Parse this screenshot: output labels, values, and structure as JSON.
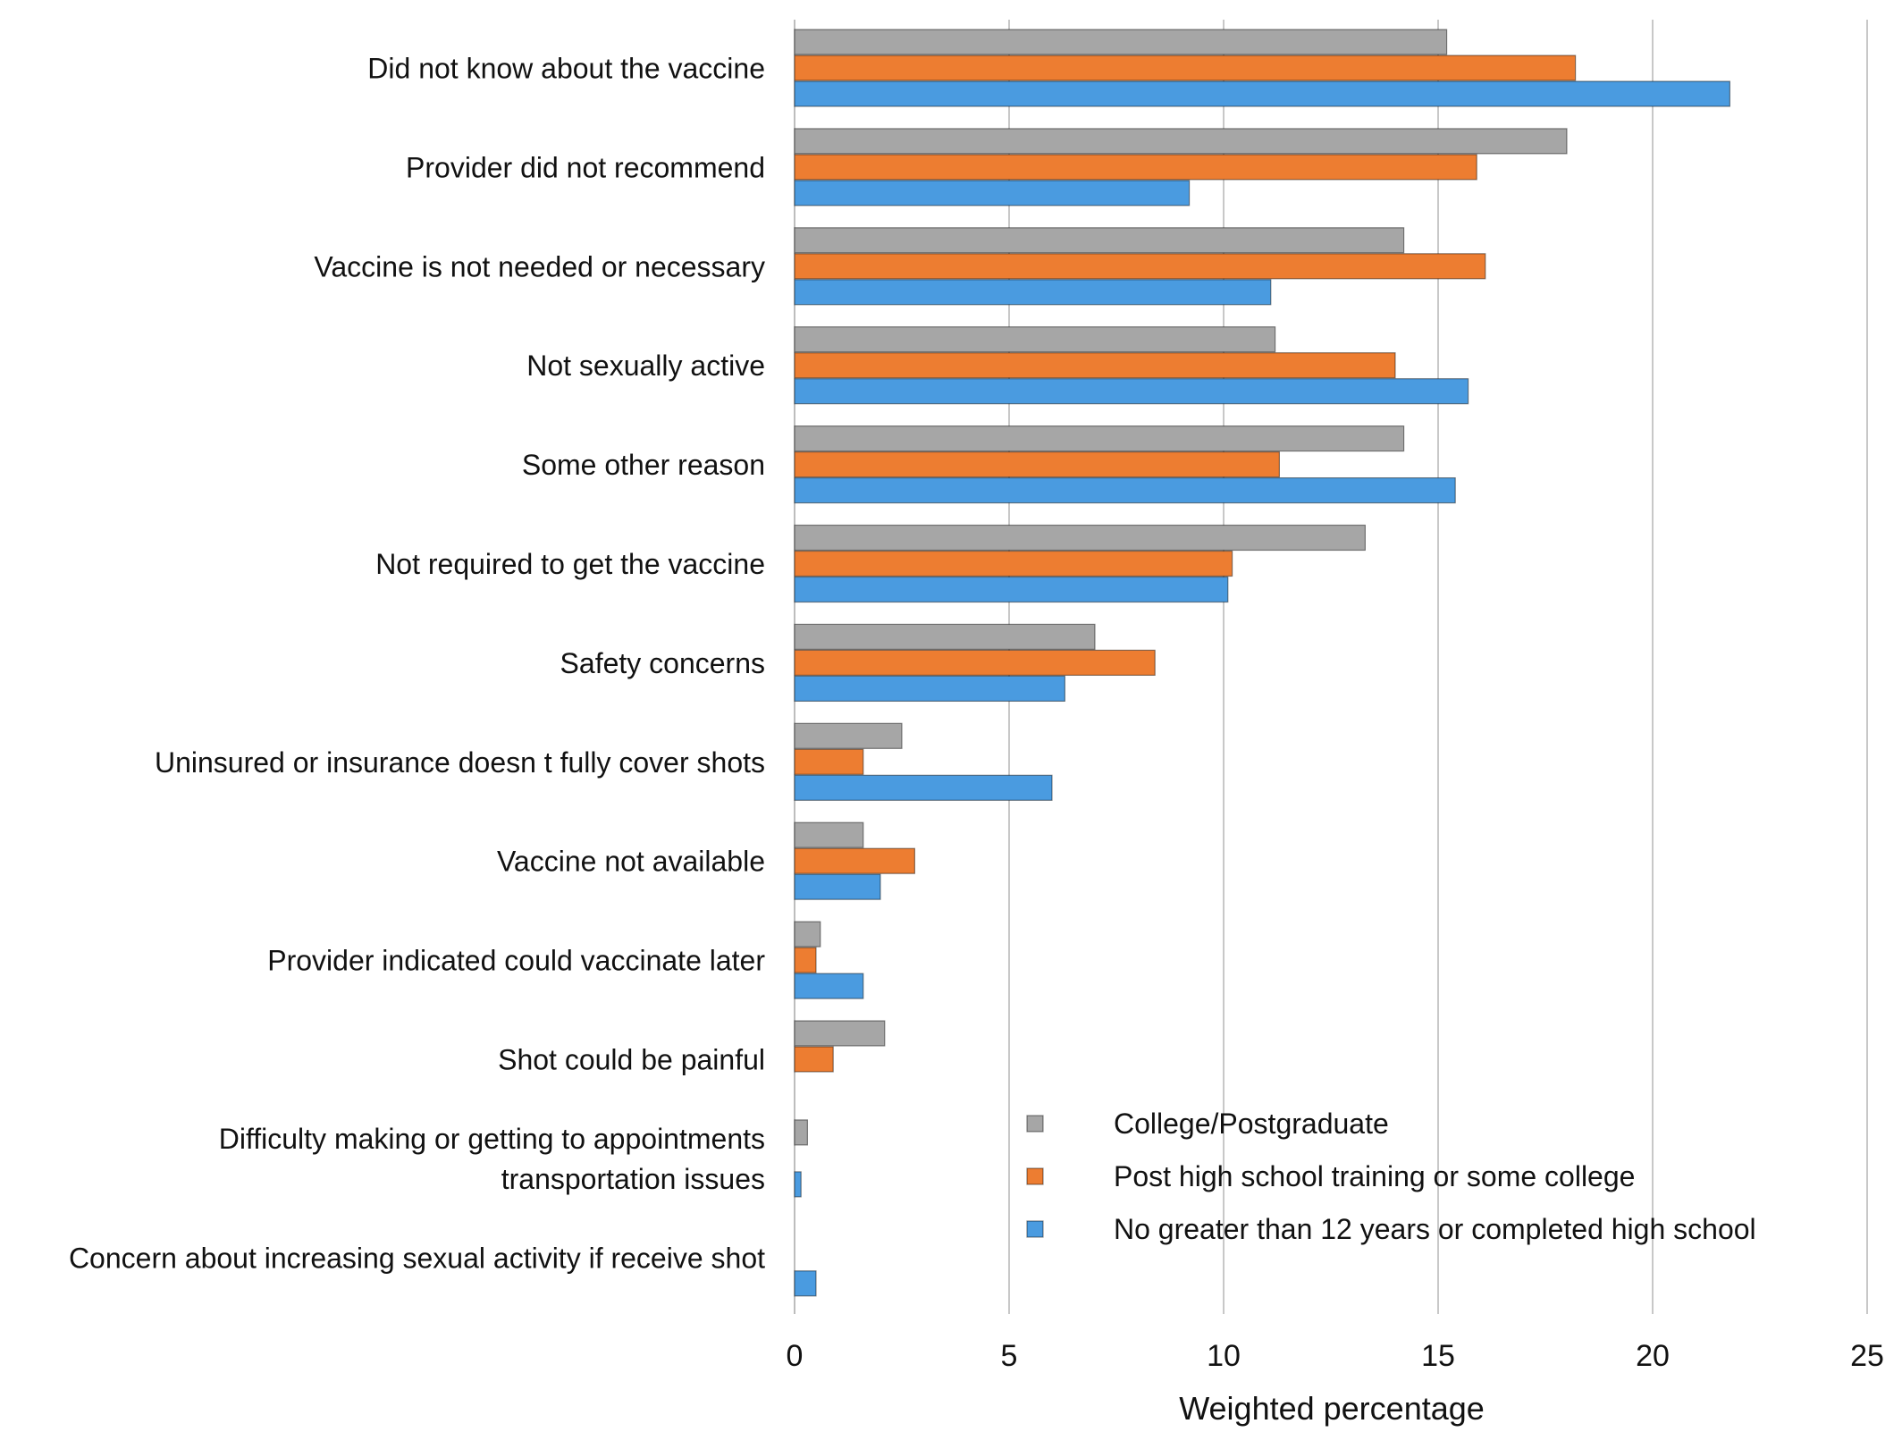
{
  "chart_data": {
    "type": "bar",
    "orientation": "horizontal",
    "xlabel": "Weighted percentage",
    "ylabel": "",
    "xlim": [
      0,
      25
    ],
    "xticks": [
      0,
      5,
      10,
      15,
      20,
      25
    ],
    "grid": true,
    "legend_position": "bottom-right",
    "categories": [
      [
        "Did not know about the vaccine"
      ],
      [
        "Provider did not recommend"
      ],
      [
        "Vaccine is not needed or necessary"
      ],
      [
        "Not sexually active"
      ],
      [
        "Some other reason"
      ],
      [
        "Not required to get the vaccine"
      ],
      [
        "Safety concerns"
      ],
      [
        "Uninsured or insurance doesn t fully cover shots"
      ],
      [
        "Vaccine not available"
      ],
      [
        "Provider indicated could vaccinate later"
      ],
      [
        "Shot could be painful"
      ],
      [
        "Difficulty making or getting to appointments",
        "transportation issues"
      ],
      [
        "Concern about increasing sexual activity if receive shot"
      ]
    ],
    "series": [
      {
        "name": "College/Postgraduate",
        "color": "#a6a6a6",
        "values": [
          15.2,
          18.0,
          14.2,
          11.2,
          14.2,
          13.3,
          7.0,
          2.5,
          1.6,
          0.6,
          2.1,
          0.3,
          0.0
        ]
      },
      {
        "name": "Post high school training or some college",
        "color": "#ed7d31",
        "values": [
          18.2,
          15.9,
          16.1,
          14.0,
          11.3,
          10.2,
          8.4,
          1.6,
          2.8,
          0.5,
          0.9,
          0.0,
          0.0
        ]
      },
      {
        "name": "No greater than 12 years or completed high school",
        "color": "#4a9be0",
        "values": [
          21.8,
          9.2,
          11.1,
          15.7,
          15.4,
          10.1,
          6.3,
          6.0,
          2.0,
          1.6,
          0.0,
          0.15,
          0.5
        ]
      }
    ]
  }
}
